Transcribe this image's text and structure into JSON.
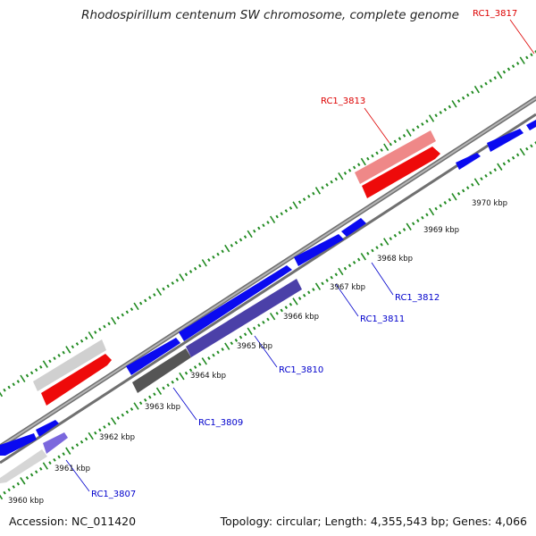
{
  "title": "Rhodospirillum centenum SW chromosome, complete genome",
  "footer": {
    "accession_label": "Accession:",
    "accession": "NC_011420",
    "topology_label": "Topology:",
    "topology": "circular",
    "length_label": "Length:",
    "length": "4,355,543 bp",
    "genes_label": "Genes:",
    "genes": "4,066"
  },
  "scale": {
    "ticks": [
      {
        "label": "3960 kbp"
      },
      {
        "label": "3961 kbp"
      },
      {
        "label": "3962 kbp"
      },
      {
        "label": "3963 kbp"
      },
      {
        "label": "3964 kbp"
      },
      {
        "label": "3965 kbp"
      },
      {
        "label": "3966 kbp"
      },
      {
        "label": "3967 kbp"
      },
      {
        "label": "3968 kbp"
      },
      {
        "label": "3969 kbp"
      },
      {
        "label": "3970 kbp"
      }
    ]
  },
  "gene_labels": [
    {
      "name": "RC1_3807",
      "color": "#0000cc"
    },
    {
      "name": "RC1_3809",
      "color": "#0000cc"
    },
    {
      "name": "RC1_3810",
      "color": "#0000cc"
    },
    {
      "name": "RC1_3811",
      "color": "#0000cc"
    },
    {
      "name": "RC1_3812",
      "color": "#0000cc"
    },
    {
      "name": "RC1_3813",
      "color": "#dd0000"
    },
    {
      "name": "RC1_3817",
      "color": "#dd0000"
    }
  ],
  "colors": {
    "forward_gene": "#0a0af0",
    "reverse_gene": "#ee0a0a",
    "tick_marks": "#228b22",
    "backbone": "#8a8a8a"
  }
}
